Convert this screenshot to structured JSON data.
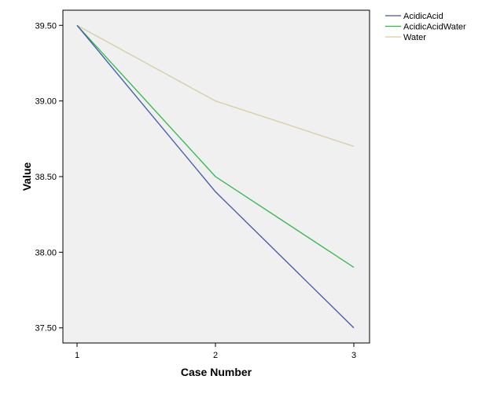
{
  "chart_data": {
    "type": "line",
    "title": "",
    "xlabel": "Case Number",
    "ylabel": "Value",
    "x": [
      1,
      2,
      3
    ],
    "x_tick_labels": [
      "1",
      "2",
      "3"
    ],
    "ylim": [
      37.4,
      39.6
    ],
    "y_ticks": [
      37.5,
      38.0,
      38.5,
      39.0,
      39.5
    ],
    "y_tick_labels": [
      "37.50",
      "38.00",
      "38.50",
      "39.00",
      "39.50"
    ],
    "grid": false,
    "legend_position": "top-right outside",
    "plot_background": "#f0f0f0",
    "series": [
      {
        "name": "AcidicAcid",
        "values": [
          39.5,
          38.4,
          37.5
        ],
        "color": "#3e58ac"
      },
      {
        "name": "AcidicAcidWater",
        "values": [
          39.5,
          38.5,
          37.9
        ],
        "color": "#2eb848"
      },
      {
        "name": "Water",
        "values": [
          39.5,
          39.0,
          38.7
        ],
        "color": "#d4cf9e"
      }
    ]
  }
}
